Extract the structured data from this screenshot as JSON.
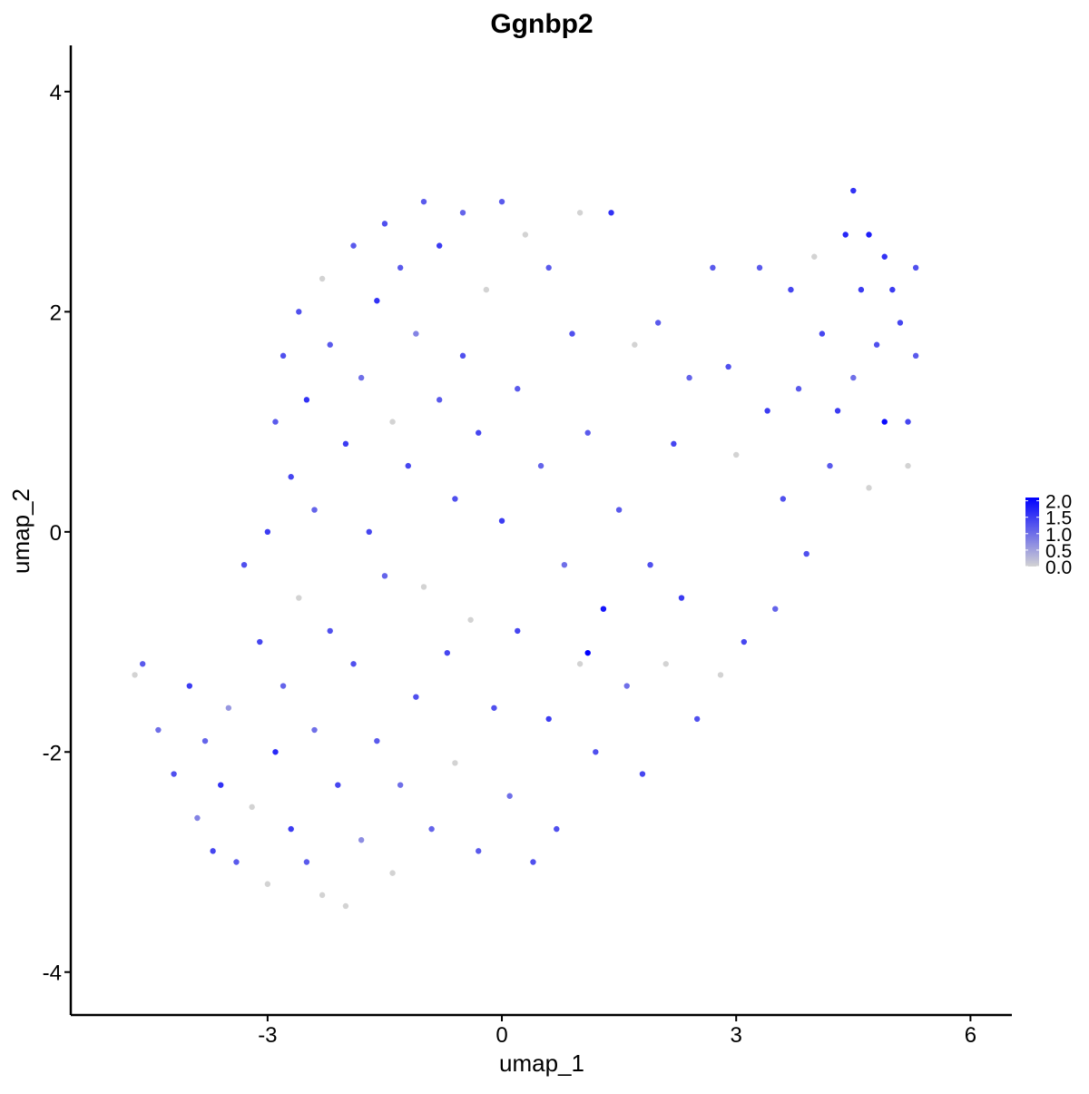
{
  "chart_data": {
    "type": "scatter",
    "title": "Ggnbp2",
    "x_label": "umap_1",
    "y_label": "umap_2",
    "xlim": [
      -5.52,
      6.53
    ],
    "ylim": [
      -4.39,
      4.42
    ],
    "xticks": [
      -3,
      0,
      3,
      6
    ],
    "yticks": [
      -4,
      -2,
      0,
      2,
      4
    ],
    "color_scale": {
      "low": "#d3d3d3",
      "high": "#0000ff",
      "lim": [
        0,
        2.1
      ],
      "ticks": [
        {
          "value": 0,
          "label": "0.0"
        },
        {
          "value": 0.5,
          "label": "0.5"
        },
        {
          "value": 1,
          "label": "1.0"
        },
        {
          "value": 1.5,
          "label": "1.5"
        },
        {
          "value": 2,
          "label": "2.0"
        }
      ]
    },
    "series": [
      {
        "x": [
          -4.7,
          -4.6,
          -4.4,
          -4.2,
          -4.0,
          -3.9,
          -3.8,
          -3.7,
          -3.6,
          -3.5,
          -3.4,
          -3.3,
          -3.2,
          -3.1,
          -3.0,
          -3.0,
          -2.9,
          -2.9,
          -2.8,
          -2.8,
          -2.7,
          -2.7,
          -2.6,
          -2.6,
          -2.5,
          -2.5,
          -2.4,
          -2.4,
          -2.3,
          -2.3,
          -2.2,
          -2.2,
          -2.1,
          -2.0,
          -2.0,
          -1.9,
          -1.9,
          -1.8,
          -1.8,
          -1.7,
          -1.6,
          -1.6,
          -1.5,
          -1.5,
          -1.4,
          -1.4,
          -1.3,
          -1.3,
          -1.2,
          -1.1,
          -1.1,
          -1.0,
          -1.0,
          -0.9,
          -0.8,
          -0.8,
          -0.7,
          -0.6,
          -0.6,
          -0.5,
          -0.5,
          -0.4,
          -0.3,
          -0.3,
          -0.2,
          -0.1,
          0,
          0,
          0.1,
          0.2,
          0.2,
          0.3,
          0.4,
          0.5,
          0.6,
          0.6,
          0.7,
          0.8,
          0.9,
          1.0,
          1.0,
          1.1,
          1.1,
          1.2,
          1.3,
          1.4,
          1.5,
          1.6,
          1.7,
          1.8,
          1.9,
          2.0,
          2.1,
          2.2,
          2.3,
          2.4,
          2.5,
          2.7,
          2.8,
          2.9,
          3.0,
          3.1,
          3.3,
          3.4,
          3.5,
          3.6,
          3.7,
          3.8,
          3.9,
          4.0,
          4.1,
          4.2,
          4.3,
          4.4,
          4.5,
          4.5,
          4.6,
          4.7,
          4.7,
          4.8,
          4.9,
          4.9,
          5.0,
          5.1,
          5.2,
          5.3,
          5.3,
          5.2
        ],
        "y": [
          -1.3,
          -1.2,
          -1.8,
          -2.2,
          -1.4,
          -2.6,
          -1.9,
          -2.9,
          -2.3,
          -1.6,
          -3.0,
          -0.3,
          -2.5,
          -1.0,
          -3.2,
          0,
          -2.0,
          1.0,
          -1.4,
          1.6,
          -2.7,
          0.5,
          2.0,
          -0.6,
          -3.0,
          1.2,
          -1.8,
          0.2,
          2.3,
          -3.3,
          -0.9,
          1.7,
          -2.3,
          0.8,
          -3.4,
          2.6,
          -1.2,
          1.4,
          -2.8,
          0,
          2.1,
          -1.9,
          2.8,
          -0.4,
          1.0,
          -3.1,
          2.4,
          -2.3,
          0.6,
          1.8,
          -1.5,
          3.0,
          -0.5,
          -2.7,
          2.6,
          1.2,
          -1.1,
          0.3,
          -2.1,
          2.9,
          1.6,
          -0.8,
          -2.9,
          0.9,
          2.2,
          -1.6,
          3.0,
          0.1,
          -2.4,
          1.3,
          -0.9,
          2.7,
          -3.0,
          0.6,
          -1.7,
          2.4,
          -2.7,
          -0.3,
          1.8,
          -1.2,
          2.9,
          -1.1,
          0.9,
          -2.0,
          -0.7,
          2.9,
          0.2,
          -1.4,
          1.7,
          -2.2,
          -0.3,
          1.9,
          -1.2,
          0.8,
          -0.6,
          1.4,
          -1.7,
          2.4,
          -1.3,
          1.5,
          0.7,
          -1.0,
          2.4,
          1.1,
          -0.7,
          0.3,
          2.2,
          1.3,
          -0.2,
          2.5,
          1.8,
          0.6,
          1.1,
          2.7,
          3.1,
          1.4,
          2.2,
          2.7,
          0.4,
          1.7,
          2.5,
          1.0,
          2.2,
          1.9,
          0.6,
          2.4,
          1.6,
          1.0
        ],
        "values": [
          0,
          1.2,
          1.0,
          1.3,
          1.5,
          0.8,
          1.1,
          1.4,
          1.6,
          0.6,
          1.2,
          1.3,
          0,
          1.4,
          0,
          1.5,
          1.7,
          1.2,
          1.1,
          1.3,
          1.5,
          1.4,
          1.3,
          0,
          1.2,
          1.6,
          1.0,
          1.1,
          0,
          0,
          1.3,
          1.2,
          1.4,
          1.5,
          0,
          1.2,
          1.3,
          1.0,
          0.7,
          1.4,
          1.6,
          1.2,
          1.3,
          1.1,
          0,
          0,
          1.2,
          1.0,
          1.4,
          0.8,
          1.3,
          1.2,
          0,
          1.1,
          1.5,
          1.2,
          1.4,
          1.3,
          0,
          1.1,
          1.3,
          0,
          1.2,
          1.4,
          0,
          1.3,
          1.2,
          1.5,
          1.0,
          1.2,
          1.4,
          0,
          1.3,
          1.1,
          1.5,
          1.2,
          1.3,
          1.0,
          1.3,
          0,
          0,
          2.1,
          1.2,
          1.3,
          1.9,
          1.6,
          1.2,
          1.0,
          0,
          1.4,
          1.3,
          1.2,
          0,
          1.4,
          1.5,
          1.1,
          1.3,
          1.2,
          0,
          1.3,
          0,
          1.4,
          1.2,
          1.5,
          1.1,
          1.3,
          1.4,
          1.2,
          1.3,
          0,
          1.4,
          1.2,
          1.5,
          1.7,
          1.6,
          1.0,
          1.5,
          1.8,
          0,
          1.3,
          1.6,
          2.0,
          1.5,
          1.4,
          0,
          1.3,
          1.2,
          1.4
        ]
      }
    ]
  }
}
